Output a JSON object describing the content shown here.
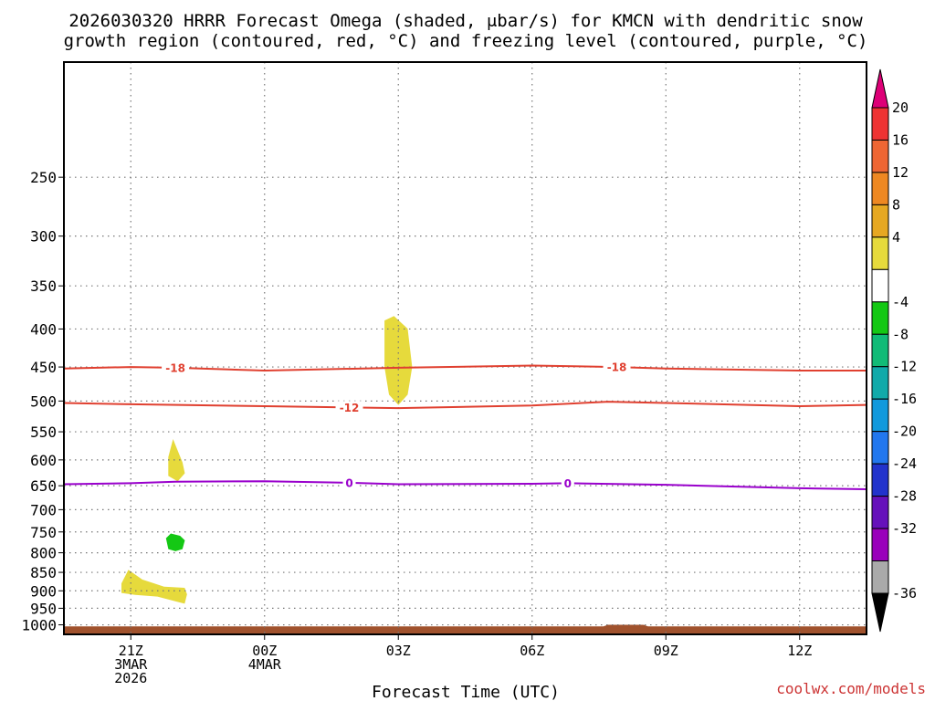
{
  "chart_data": {
    "type": "time-height cross section",
    "title_line1": "2026030320 HRRR Forecast Omega (shaded, μbar/s) for KMCN with dendritic snow",
    "title_line2": "growth region (contoured, red, °C) and freezing level (contoured, purple, °C)",
    "xlabel": "Forecast Time (UTC)",
    "ylabel": "",
    "credit": "coolwx.com/models",
    "x_range_hours": [
      -1.5,
      16.5
    ],
    "y_range_hpa": [
      175,
      1030
    ],
    "x_ticks": [
      {
        "hour": 0,
        "lines": [
          "21Z",
          "3MAR",
          "2026"
        ]
      },
      {
        "hour": 3,
        "lines": [
          "00Z",
          "4MAR"
        ]
      },
      {
        "hour": 6,
        "lines": [
          "03Z"
        ]
      },
      {
        "hour": 9,
        "lines": [
          "06Z"
        ]
      },
      {
        "hour": 12,
        "lines": [
          "09Z"
        ]
      },
      {
        "hour": 15,
        "lines": [
          "12Z"
        ]
      }
    ],
    "y_ticks": [
      250,
      300,
      350,
      400,
      450,
      500,
      550,
      600,
      650,
      700,
      750,
      800,
      850,
      900,
      950,
      1000
    ],
    "contours": [
      {
        "name": "dgz-minus18",
        "label": "-18",
        "color": "#e04030",
        "label_hours": [
          1.0,
          10.9
        ],
        "points": [
          [
            -1.5,
            452
          ],
          [
            0,
            450
          ],
          [
            1,
            451
          ],
          [
            3,
            455
          ],
          [
            6,
            451
          ],
          [
            9,
            448
          ],
          [
            10.9,
            450
          ],
          [
            12,
            452
          ],
          [
            15,
            455
          ],
          [
            16.5,
            455
          ]
        ]
      },
      {
        "name": "dgz-minus12",
        "label": "-12",
        "color": "#e04030",
        "label_hours": [
          4.9
        ],
        "points": [
          [
            -1.5,
            503
          ],
          [
            0,
            505
          ],
          [
            3,
            508
          ],
          [
            4.9,
            510
          ],
          [
            6,
            511
          ],
          [
            9,
            507
          ],
          [
            10.7,
            501
          ],
          [
            12,
            503
          ],
          [
            15,
            508
          ],
          [
            16.5,
            506
          ]
        ]
      },
      {
        "name": "freezing-level",
        "label": "0",
        "color": "#9900cc",
        "label_hours": [
          4.9,
          9.8
        ],
        "points": [
          [
            -1.5,
            647
          ],
          [
            0,
            645
          ],
          [
            1,
            642
          ],
          [
            3,
            641
          ],
          [
            4.9,
            644
          ],
          [
            6,
            647
          ],
          [
            9,
            646
          ],
          [
            9.8,
            645
          ],
          [
            12,
            648
          ],
          [
            15,
            655
          ],
          [
            16.5,
            657
          ]
        ]
      }
    ],
    "omega_shading": [
      {
        "name": "omega-area-03z",
        "bin": "4 to 8",
        "color": "#e6da3c",
        "points": [
          [
            5.7,
            390
          ],
          [
            5.9,
            385
          ],
          [
            6.2,
            400
          ],
          [
            6.3,
            450
          ],
          [
            6.2,
            490
          ],
          [
            6.0,
            505
          ],
          [
            5.8,
            490
          ],
          [
            5.7,
            450
          ]
        ]
      },
      {
        "name": "omega-area-2130z-upper",
        "bin": "4 to 8",
        "color": "#e6da3c",
        "points": [
          [
            0.85,
            595
          ],
          [
            0.95,
            565
          ],
          [
            1.15,
            605
          ],
          [
            1.2,
            625
          ],
          [
            1.05,
            640
          ],
          [
            0.85,
            630
          ]
        ]
      },
      {
        "name": "omega-area-2130z-mid",
        "bin": "-8 to -4",
        "color": "#14c814",
        "points": [
          [
            0.8,
            765
          ],
          [
            0.9,
            755
          ],
          [
            1.1,
            760
          ],
          [
            1.2,
            770
          ],
          [
            1.15,
            790
          ],
          [
            1.0,
            795
          ],
          [
            0.85,
            790
          ]
        ]
      },
      {
        "name": "omega-area-21z-lower",
        "bin": "4 to 8",
        "color": "#e6da3c",
        "points": [
          [
            -0.2,
            880
          ],
          [
            -0.05,
            845
          ],
          [
            0.25,
            870
          ],
          [
            0.75,
            890
          ],
          [
            1.2,
            893
          ],
          [
            1.25,
            910
          ],
          [
            1.2,
            935
          ],
          [
            1.05,
            930
          ],
          [
            0.6,
            915
          ],
          [
            0.1,
            910
          ],
          [
            -0.2,
            905
          ]
        ]
      }
    ],
    "ground": {
      "name": "terrain-below-surface",
      "color": "#a0522d",
      "points": [
        [
          -1.5,
          1005
        ],
        [
          10.6,
          1005
        ],
        [
          10.7,
          1000
        ],
        [
          11.5,
          1000
        ],
        [
          11.6,
          1005
        ],
        [
          16.5,
          1005
        ],
        [
          16.5,
          1030
        ],
        [
          -1.5,
          1030
        ]
      ]
    },
    "colorbar": {
      "upper_arrow": "#dd0077",
      "lower_arrow": "#000000",
      "bins": [
        {
          "color": "#ee3333",
          "top_label": "20"
        },
        {
          "color": "#ee6633",
          "top_label": "16"
        },
        {
          "color": "#ee8822",
          "top_label": "12"
        },
        {
          "color": "#e6a822",
          "top_label": "8"
        },
        {
          "color": "#e6da3c",
          "top_label": "4"
        },
        {
          "color": "#ffffff",
          "top_label": ""
        },
        {
          "color": "#14c814",
          "top_label": "-4"
        },
        {
          "color": "#11bb77",
          "top_label": "-8"
        },
        {
          "color": "#11aaaa",
          "top_label": "-12"
        },
        {
          "color": "#1199dd",
          "top_label": "-16"
        },
        {
          "color": "#2277ee",
          "top_label": "-20"
        },
        {
          "color": "#2233cc",
          "top_label": "-24"
        },
        {
          "color": "#6611bb",
          "top_label": "-28"
        },
        {
          "color": "#9900bb",
          "top_label": "-32"
        },
        {
          "color": "#aaaaaa",
          "top_label": ""
        }
      ],
      "bottom_label": "-36"
    }
  }
}
